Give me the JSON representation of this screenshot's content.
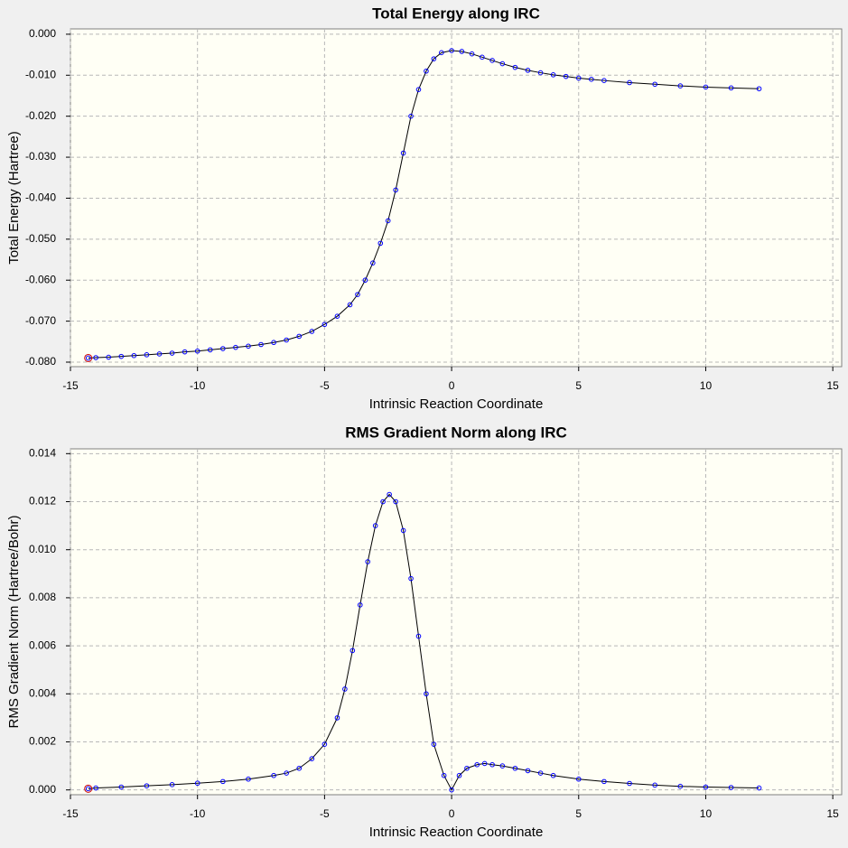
{
  "chart_data": [
    {
      "type": "line",
      "title": "Total Energy along IRC",
      "x_label": "Intrinsic Reaction Coordinate",
      "y_label": "Total Energy (Hartree)",
      "x": [
        -14.3,
        -14.0,
        -13.5,
        -13.0,
        -12.5,
        -12.0,
        -11.5,
        -11.0,
        -10.5,
        -10.0,
        -9.5,
        -9.0,
        -8.5,
        -8.0,
        -7.5,
        -7.0,
        -6.5,
        -6.0,
        -5.5,
        -5.0,
        -4.5,
        -4.0,
        -3.7,
        -3.4,
        -3.1,
        -2.8,
        -2.5,
        -2.2,
        -1.9,
        -1.6,
        -1.3,
        -1.0,
        -0.7,
        -0.4,
        0.0,
        0.4,
        0.8,
        1.2,
        1.6,
        2.0,
        2.5,
        3.0,
        3.5,
        4.0,
        4.5,
        5.0,
        5.5,
        6.0,
        7.0,
        8.0,
        9.0,
        10.0,
        11.0,
        12.1
      ],
      "values": [
        -0.079,
        -0.0789,
        -0.0788,
        -0.0786,
        -0.0784,
        -0.0782,
        -0.078,
        -0.0778,
        -0.0775,
        -0.0773,
        -0.077,
        -0.0767,
        -0.0764,
        -0.0761,
        -0.0757,
        -0.0752,
        -0.0746,
        -0.0737,
        -0.0725,
        -0.0708,
        -0.0688,
        -0.066,
        -0.0635,
        -0.06,
        -0.0558,
        -0.051,
        -0.0455,
        -0.038,
        -0.029,
        -0.02,
        -0.0135,
        -0.009,
        -0.006,
        -0.0045,
        -0.004,
        -0.0042,
        -0.0048,
        -0.0056,
        -0.0064,
        -0.0072,
        -0.0081,
        -0.0088,
        -0.0094,
        -0.0099,
        -0.0103,
        -0.0107,
        -0.011,
        -0.0113,
        -0.0118,
        -0.0122,
        -0.0126,
        -0.0129,
        -0.0131,
        -0.0133
      ],
      "line_color": "#000000",
      "marker_color": "#0000ff",
      "start_marker_color": "#cc0000",
      "xlim": [
        -15,
        15.35
      ],
      "xticks": [
        -15,
        -10,
        -5,
        0,
        5,
        10,
        15
      ],
      "ylim": [
        -0.0811,
        0.0013
      ],
      "yticks": [
        {
          "value": 0,
          "label": "0.000"
        },
        {
          "value": -0.01,
          "label": "-0.010"
        },
        {
          "value": -0.02,
          "label": "-0.020"
        },
        {
          "value": -0.03,
          "label": "-0.030"
        },
        {
          "value": -0.04,
          "label": "-0.040"
        },
        {
          "value": -0.05,
          "label": "-0.050"
        },
        {
          "value": -0.06,
          "label": "-0.060"
        },
        {
          "value": -0.07,
          "label": "-0.070"
        },
        {
          "value": -0.08,
          "label": "-0.080"
        }
      ],
      "grid": true
    },
    {
      "type": "line",
      "title": "RMS Gradient Norm along IRC",
      "x_label": "Intrinsic Reaction Coordinate",
      "y_label": "RMS Gradient Norm (Hartree/Bohr)",
      "x": [
        -14.3,
        -14.0,
        -13.0,
        -12.0,
        -11.0,
        -10.0,
        -9.0,
        -8.0,
        -7.0,
        -6.5,
        -6.0,
        -5.5,
        -5.0,
        -4.5,
        -4.2,
        -3.9,
        -3.6,
        -3.3,
        -3.0,
        -2.7,
        -2.45,
        -2.2,
        -1.9,
        -1.6,
        -1.3,
        -1.0,
        -0.7,
        -0.3,
        0.0,
        0.3,
        0.6,
        1.0,
        1.3,
        1.6,
        2.0,
        2.5,
        3.0,
        3.5,
        4.0,
        5.0,
        6.0,
        7.0,
        8.0,
        9.0,
        10.0,
        11.0,
        12.1
      ],
      "values": [
        5e-05,
        8e-05,
        0.00012,
        0.00017,
        0.00022,
        0.00028,
        0.00035,
        0.00045,
        0.0006,
        0.0007,
        0.0009,
        0.0013,
        0.0019,
        0.003,
        0.0042,
        0.0058,
        0.0077,
        0.0095,
        0.011,
        0.012,
        0.0123,
        0.012,
        0.0108,
        0.0088,
        0.0064,
        0.004,
        0.0019,
        0.0006,
        0.0,
        0.0006,
        0.0009,
        0.00105,
        0.0011,
        0.00105,
        0.001,
        0.0009,
        0.0008,
        0.0007,
        0.0006,
        0.00045,
        0.00035,
        0.00027,
        0.0002,
        0.00015,
        0.00012,
        0.0001,
        8e-05
      ],
      "line_color": "#000000",
      "marker_color": "#0000ff",
      "start_marker_color": "#cc0000",
      "xlim": [
        -15,
        15.35
      ],
      "xticks": [
        -15,
        -10,
        -5,
        0,
        5,
        10,
        15
      ],
      "ylim": [
        -0.0002,
        0.0142
      ],
      "yticks": [
        {
          "value": 0,
          "label": "0.000"
        },
        {
          "value": 0.002,
          "label": "0.002"
        },
        {
          "value": 0.004,
          "label": "0.004"
        },
        {
          "value": 0.006,
          "label": "0.006"
        },
        {
          "value": 0.008,
          "label": "0.008"
        },
        {
          "value": 0.01,
          "label": "0.010"
        },
        {
          "value": 0.012,
          "label": "0.012"
        },
        {
          "value": 0.014,
          "label": "0.014"
        }
      ],
      "grid": true
    }
  ]
}
